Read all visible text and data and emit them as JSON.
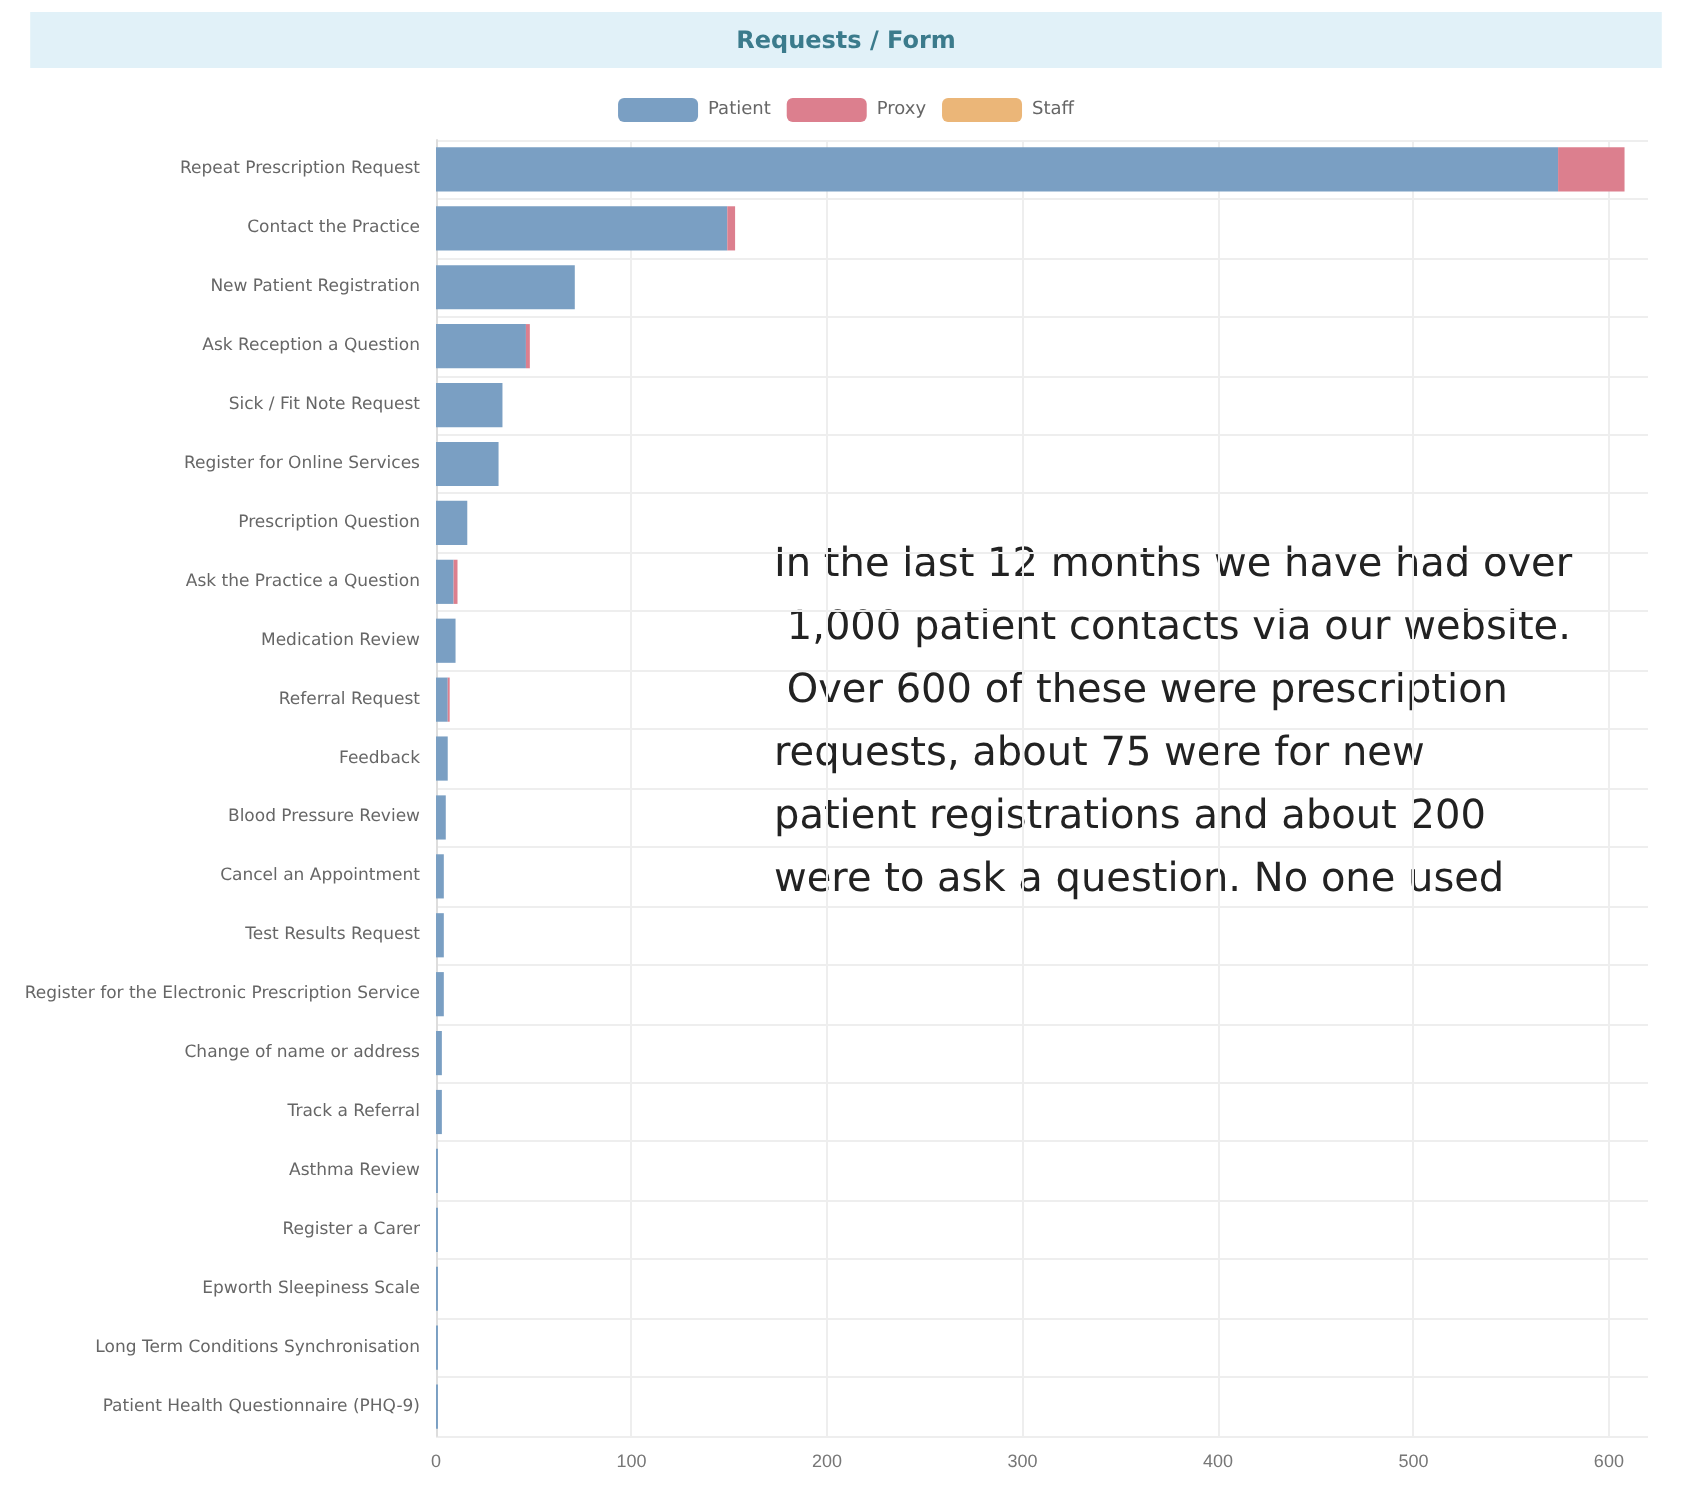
{
  "chart_data": {
    "type": "bar",
    "title": "Requests / Form",
    "orientation": "horizontal",
    "stacked": true,
    "grid": true,
    "legend": "top",
    "categories": [
      "Repeat Prescription Request",
      "Contact the Practice",
      "New Patient Registration",
      "Ask Reception a Question",
      "Sick / Fit Note Request",
      "Register for Online Services",
      "Prescription Question",
      "Ask the Practice a Question",
      "Medication Review",
      "Referral Request",
      "Feedback",
      "Blood Pressure Review",
      "Cancel an Appointment",
      "Test Results Request",
      "Register for the Electronic Prescription Service",
      "Change of name or address",
      "Track a Referral",
      "Asthma Review",
      "Register a Carer",
      "Epworth Sleepiness Scale",
      "Long Term Conditions Synchronisation",
      "Patient Health Questionnaire (PHQ-9)"
    ],
    "series": [
      {
        "name": "Patient",
        "color": "#7a9fc3",
        "values": [
          574,
          149,
          71,
          46,
          34,
          32,
          16,
          9,
          10,
          6,
          6,
          5,
          4,
          4,
          4,
          3,
          3,
          1,
          1,
          1,
          1,
          1
        ]
      },
      {
        "name": "Proxy",
        "color": "#dc7f8e",
        "values": [
          34,
          4,
          0,
          2,
          0,
          0,
          0,
          2,
          0,
          1,
          0,
          0,
          0,
          0,
          0,
          0,
          0,
          0,
          0,
          0,
          0,
          0
        ]
      },
      {
        "name": "Staff",
        "color": "#ebb678",
        "values": [
          0,
          0,
          0,
          0,
          0,
          0,
          0,
          0,
          0,
          0,
          0,
          0,
          0,
          0,
          0,
          0,
          0,
          0,
          0,
          0,
          0,
          0
        ]
      }
    ],
    "xlim": [
      0,
      620
    ],
    "xticks": [
      0,
      100,
      200,
      300,
      400,
      500,
      600
    ],
    "annotations": [
      "In the last 12 months we have had over 1,000 patient contacts via our website. Over 600 of these were prescription requests, about 75 were for new patient registrations and about 200 were to ask a question. No one used"
    ]
  }
}
